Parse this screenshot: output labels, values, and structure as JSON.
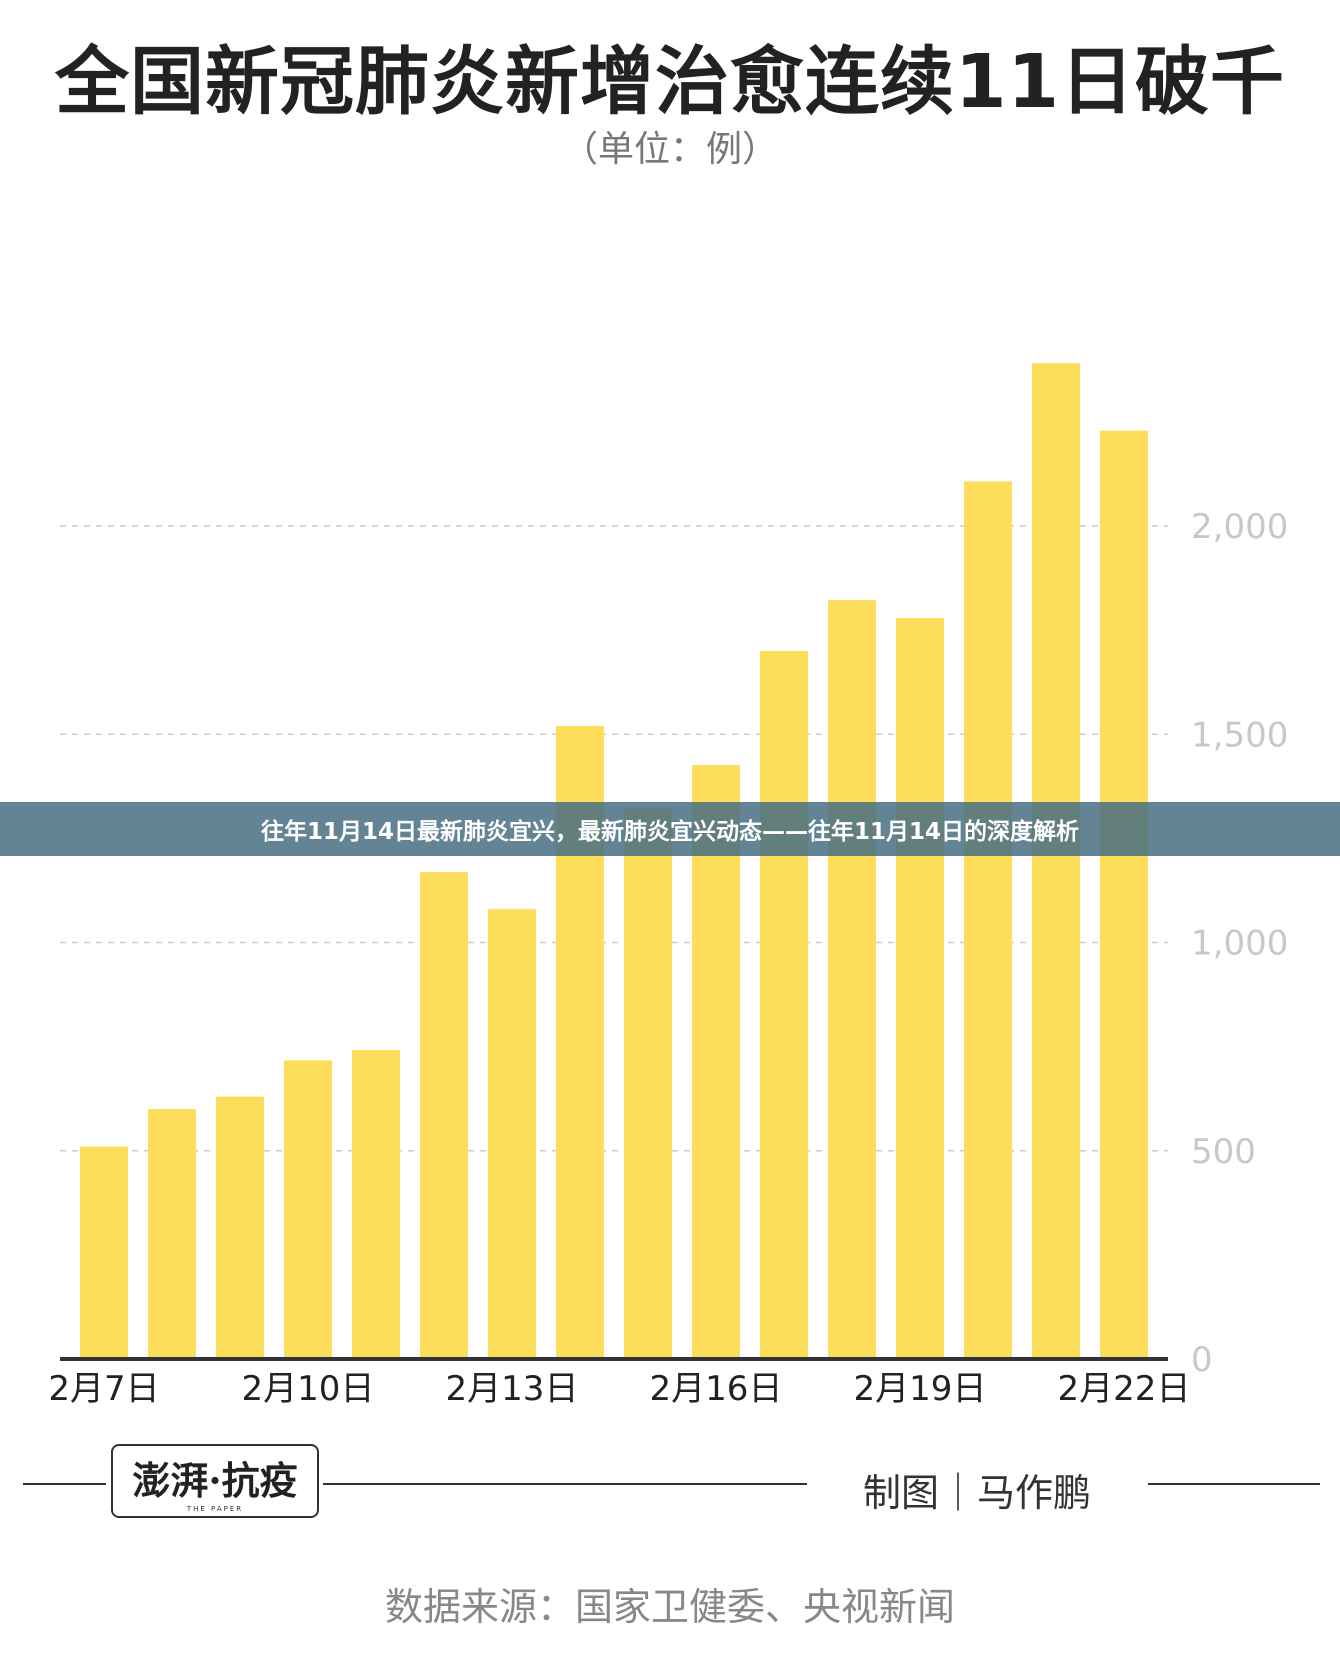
{
  "chart_data": {
    "type": "bar",
    "title": "全国新冠肺炎新增治愈连续11日破千",
    "subtitle": "（单位：例）",
    "categories": [
      "2月7日",
      "2月8日",
      "2月9日",
      "2月10日",
      "2月11日",
      "2月12日",
      "2月13日",
      "2月14日",
      "2月15日",
      "2月16日",
      "2月17日",
      "2月18日",
      "2月19日",
      "2月20日",
      "2月21日",
      "2月22日"
    ],
    "values": [
      510,
      600,
      630,
      717,
      742,
      1169,
      1080,
      1520,
      1321,
      1426,
      1700,
      1822,
      1779,
      2107,
      2391,
      2229
    ],
    "xtick_labels": [
      "2月7日",
      "2月10日",
      "2月13日",
      "2月16日",
      "2月19日",
      "2月22日"
    ],
    "yticks": [
      0,
      500,
      1000,
      1500,
      2000
    ],
    "ytick_labels": [
      "0",
      "500",
      "1,000",
      "1,500",
      "2,000"
    ],
    "ylim": [
      0,
      2500
    ],
    "grid": "horizontal dashed",
    "bar_color": "#FEDD5A"
  },
  "banner": {
    "text": "往年11月14日最新肺炎宜兴，最新肺炎宜兴动态——往年11月14日的深度解析"
  },
  "footer": {
    "logo_text": "澎湃·抗疫",
    "logo_sub": "THE PAPER",
    "credit": "制图｜马作鹏",
    "source": "数据来源：国家卫健委、央视新闻"
  }
}
